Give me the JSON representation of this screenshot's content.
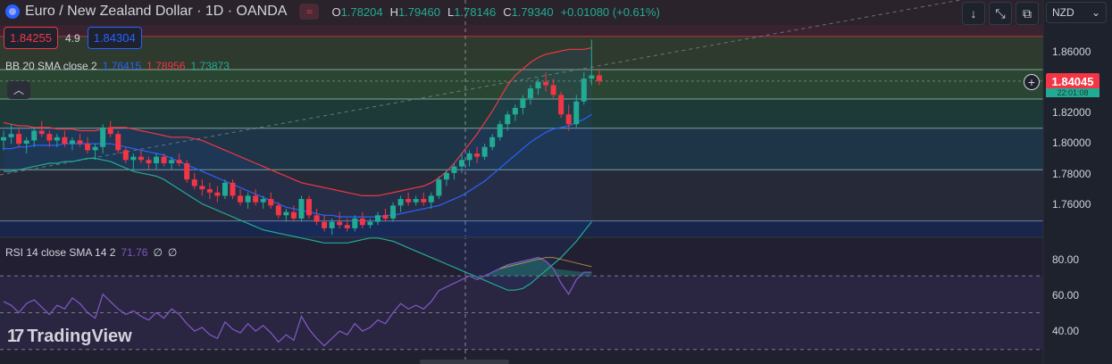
{
  "header": {
    "symbol_title": "Euro / New Zealand Dollar · 1D · OANDA",
    "ohlc": {
      "o_label": "O",
      "o": "1.78204",
      "h_label": "H",
      "h": "1.79460",
      "l_label": "L",
      "l": "1.78146",
      "c_label": "C",
      "c": "1.79340",
      "change": "+0.01080 (+0.61%)"
    }
  },
  "trade": {
    "bid": "1.84255",
    "spread": "4.9",
    "ask": "1.84304"
  },
  "indicators": {
    "bb": {
      "name": "BB 20 SMA close 2",
      "basis": "1.76415",
      "upper": "1.78956",
      "lower": "1.73873"
    },
    "rsi": {
      "name": "RSI 14 close SMA 14 2",
      "value": "71.76",
      "extra1": "∅",
      "extra2": "∅"
    }
  },
  "price_axis": {
    "ticks": [
      "1.86000",
      "1.84000",
      "1.82000",
      "1.80000",
      "1.78000",
      "1.76000"
    ],
    "current_price": "1.84045",
    "countdown": "22:01:08"
  },
  "rsi_axis": {
    "ticks": [
      "80.00",
      "60.00",
      "40.00"
    ]
  },
  "toolbar": {
    "currency": "NZD"
  },
  "branding": {
    "logo_text": "TradingView"
  },
  "colors": {
    "bull": "#22ab94",
    "bear": "#f23645",
    "bb_basis": "#2962ff",
    "bb_upper": "#f23645",
    "bb_lower": "#22ab94",
    "rsi": "#7e57c2"
  },
  "chart_data": {
    "type": "candlestick",
    "candles": [
      [
        1.804,
        1.81,
        1.798,
        1.806
      ],
      [
        1.806,
        1.814,
        1.802,
        1.808
      ],
      [
        1.808,
        1.812,
        1.8,
        1.802
      ],
      [
        1.802,
        1.806,
        1.796,
        1.804
      ],
      [
        1.804,
        1.812,
        1.8,
        1.81
      ],
      [
        1.81,
        1.816,
        1.806,
        1.808
      ],
      [
        1.808,
        1.81,
        1.8,
        1.804
      ],
      [
        1.804,
        1.808,
        1.8,
        1.806
      ],
      [
        1.806,
        1.81,
        1.8,
        1.802
      ],
      [
        1.802,
        1.806,
        1.798,
        1.804
      ],
      [
        1.804,
        1.808,
        1.8,
        1.802
      ],
      [
        1.802,
        1.806,
        1.796,
        1.798
      ],
      [
        1.798,
        1.802,
        1.792,
        1.8
      ],
      [
        1.8,
        1.814,
        1.796,
        1.812
      ],
      [
        1.812,
        1.816,
        1.806,
        1.808
      ],
      [
        1.808,
        1.81,
        1.796,
        1.798
      ],
      [
        1.798,
        1.8,
        1.79,
        1.792
      ],
      [
        1.792,
        1.796,
        1.786,
        1.794
      ],
      [
        1.794,
        1.798,
        1.79,
        1.792
      ],
      [
        1.792,
        1.794,
        1.786,
        1.79
      ],
      [
        1.79,
        1.796,
        1.786,
        1.794
      ],
      [
        1.794,
        1.796,
        1.788,
        1.79
      ],
      [
        1.79,
        1.794,
        1.786,
        1.792
      ],
      [
        1.792,
        1.796,
        1.788,
        1.79
      ],
      [
        1.79,
        1.792,
        1.778,
        1.78
      ],
      [
        1.78,
        1.784,
        1.774,
        1.776
      ],
      [
        1.776,
        1.78,
        1.77,
        1.774
      ],
      [
        1.774,
        1.778,
        1.768,
        1.772
      ],
      [
        1.772,
        1.776,
        1.766,
        1.77
      ],
      [
        1.77,
        1.78,
        1.768,
        1.778
      ],
      [
        1.778,
        1.78,
        1.768,
        1.77
      ],
      [
        1.77,
        1.774,
        1.764,
        1.766
      ],
      [
        1.766,
        1.772,
        1.762,
        1.77
      ],
      [
        1.77,
        1.774,
        1.764,
        1.766
      ],
      [
        1.766,
        1.77,
        1.762,
        1.768
      ],
      [
        1.768,
        1.772,
        1.762,
        1.764
      ],
      [
        1.764,
        1.766,
        1.756,
        1.758
      ],
      [
        1.758,
        1.762,
        1.754,
        1.76
      ],
      [
        1.76,
        1.764,
        1.754,
        1.756
      ],
      [
        1.756,
        1.77,
        1.754,
        1.768
      ],
      [
        1.768,
        1.77,
        1.756,
        1.758
      ],
      [
        1.758,
        1.762,
        1.752,
        1.754
      ],
      [
        1.754,
        1.758,
        1.748,
        1.75
      ],
      [
        1.75,
        1.756,
        1.746,
        1.754
      ],
      [
        1.754,
        1.76,
        1.75,
        1.752
      ],
      [
        1.752,
        1.756,
        1.748,
        1.75
      ],
      [
        1.75,
        1.758,
        1.748,
        1.756
      ],
      [
        1.756,
        1.76,
        1.75,
        1.752
      ],
      [
        1.752,
        1.756,
        1.75,
        1.754
      ],
      [
        1.754,
        1.76,
        1.752,
        1.758
      ],
      [
        1.758,
        1.762,
        1.754,
        1.756
      ],
      [
        1.756,
        1.766,
        1.754,
        1.764
      ],
      [
        1.764,
        1.77,
        1.76,
        1.768
      ],
      [
        1.768,
        1.772,
        1.764,
        1.766
      ],
      [
        1.766,
        1.77,
        1.764,
        1.768
      ],
      [
        1.768,
        1.772,
        1.764,
        1.766
      ],
      [
        1.766,
        1.772,
        1.762,
        1.77
      ],
      [
        1.77,
        1.782,
        1.768,
        1.78
      ],
      [
        1.78,
        1.786,
        1.776,
        1.784
      ],
      [
        1.784,
        1.79,
        1.78,
        1.788
      ],
      [
        1.788,
        1.796,
        1.784,
        1.792
      ],
      [
        1.792,
        1.798,
        1.788,
        1.796
      ],
      [
        1.796,
        1.8,
        1.79,
        1.794
      ],
      [
        1.794,
        1.802,
        1.792,
        1.8
      ],
      [
        1.8,
        1.808,
        1.798,
        1.806
      ],
      [
        1.806,
        1.816,
        1.804,
        1.814
      ],
      [
        1.814,
        1.822,
        1.81,
        1.82
      ],
      [
        1.82,
        1.826,
        1.816,
        1.824
      ],
      [
        1.824,
        1.832,
        1.82,
        1.83
      ],
      [
        1.83,
        1.838,
        1.826,
        1.836
      ],
      [
        1.836,
        1.842,
        1.832,
        1.84
      ],
      [
        1.84,
        1.846,
        1.834,
        1.838
      ],
      [
        1.838,
        1.842,
        1.83,
        1.832
      ],
      [
        1.832,
        1.834,
        1.818,
        1.82
      ],
      [
        1.82,
        1.826,
        1.81,
        1.814
      ],
      [
        1.814,
        1.832,
        1.812,
        1.828
      ],
      [
        1.828,
        1.846,
        1.826,
        1.842
      ],
      [
        1.842,
        1.866,
        1.838,
        1.844
      ],
      [
        1.844,
        1.848,
        1.838,
        1.8405
      ]
    ],
    "bb_upper": [
      1.815,
      1.814,
      1.813,
      1.813,
      1.812,
      1.812,
      1.812,
      1.811,
      1.811,
      1.811,
      1.81,
      1.81,
      1.81,
      1.811,
      1.812,
      1.812,
      1.812,
      1.811,
      1.81,
      1.809,
      1.808,
      1.807,
      1.806,
      1.806,
      1.806,
      1.805,
      1.804,
      1.802,
      1.8,
      1.798,
      1.796,
      1.794,
      1.792,
      1.79,
      1.788,
      1.786,
      1.784,
      1.782,
      1.78,
      1.778,
      1.777,
      1.776,
      1.775,
      1.774,
      1.773,
      1.772,
      1.771,
      1.77,
      1.77,
      1.77,
      1.771,
      1.772,
      1.773,
      1.774,
      1.775,
      1.776,
      1.778,
      1.781,
      1.785,
      1.79,
      1.796,
      1.802,
      1.808,
      1.815,
      1.822,
      1.83,
      1.838,
      1.844,
      1.848,
      1.852,
      1.855,
      1.857,
      1.858,
      1.859,
      1.86,
      1.86,
      1.86,
      1.861
    ],
    "bb_basis": [
      1.799,
      1.799,
      1.8,
      1.8,
      1.801,
      1.801,
      1.801,
      1.801,
      1.802,
      1.802,
      1.802,
      1.802,
      1.802,
      1.802,
      1.802,
      1.801,
      1.8,
      1.799,
      1.798,
      1.797,
      1.796,
      1.795,
      1.793,
      1.791,
      1.789,
      1.787,
      1.785,
      1.783,
      1.781,
      1.779,
      1.777,
      1.775,
      1.773,
      1.771,
      1.769,
      1.767,
      1.765,
      1.763,
      1.762,
      1.761,
      1.76,
      1.759,
      1.758,
      1.758,
      1.757,
      1.757,
      1.757,
      1.757,
      1.757,
      1.757,
      1.758,
      1.758,
      1.759,
      1.76,
      1.761,
      1.762,
      1.763,
      1.764,
      1.766,
      1.768,
      1.77,
      1.773,
      1.776,
      1.779,
      1.783,
      1.787,
      1.791,
      1.795,
      1.799,
      1.803,
      1.806,
      1.809,
      1.811,
      1.812,
      1.813,
      1.815,
      1.817,
      1.82
    ],
    "bb_lower": [
      1.785,
      1.785,
      1.786,
      1.787,
      1.788,
      1.789,
      1.79,
      1.79,
      1.791,
      1.791,
      1.792,
      1.793,
      1.793,
      1.792,
      1.791,
      1.789,
      1.787,
      1.785,
      1.784,
      1.783,
      1.782,
      1.78,
      1.777,
      1.774,
      1.771,
      1.768,
      1.765,
      1.763,
      1.761,
      1.759,
      1.757,
      1.755,
      1.753,
      1.751,
      1.749,
      1.748,
      1.747,
      1.746,
      1.745,
      1.744,
      1.743,
      1.742,
      1.741,
      1.741,
      1.741,
      1.741,
      1.742,
      1.743,
      1.744,
      1.744,
      1.743,
      1.742,
      1.74,
      1.738,
      1.736,
      1.734,
      1.732,
      1.73,
      1.728,
      1.726,
      1.724,
      1.722,
      1.72,
      1.718,
      1.716,
      1.714,
      1.712,
      1.712,
      1.713,
      1.716,
      1.72,
      1.724,
      1.728,
      1.732,
      1.737,
      1.742,
      1.748,
      1.754
    ],
    "rsi": [
      56,
      54,
      50,
      55,
      57,
      53,
      49,
      54,
      52,
      58,
      55,
      50,
      47,
      60,
      56,
      52,
      49,
      51,
      48,
      46,
      50,
      47,
      52,
      49,
      44,
      40,
      42,
      38,
      36,
      45,
      41,
      39,
      44,
      40,
      43,
      39,
      34,
      38,
      35,
      48,
      41,
      36,
      32,
      36,
      40,
      38,
      44,
      40,
      42,
      46,
      44,
      50,
      55,
      52,
      54,
      52,
      56,
      62,
      64,
      66,
      68,
      70,
      68,
      70,
      72,
      74,
      76,
      77,
      78,
      79,
      80,
      78,
      74,
      66,
      60,
      68,
      72,
      72
    ],
    "rsi_sma": [
      null,
      null,
      null,
      null,
      null,
      null,
      null,
      null,
      null,
      null,
      null,
      null,
      null,
      null,
      null,
      null,
      null,
      null,
      null,
      null,
      null,
      null,
      null,
      null,
      null,
      null,
      null,
      null,
      null,
      null,
      null,
      null,
      null,
      null,
      null,
      null,
      null,
      null,
      null,
      null,
      null,
      null,
      null,
      null,
      null,
      null,
      null,
      null,
      null,
      null,
      null,
      null,
      null,
      null,
      null,
      null,
      null,
      null,
      null,
      null,
      null,
      null,
      null,
      null,
      null,
      74,
      75,
      76,
      77,
      78,
      79,
      80,
      80,
      79,
      78,
      77,
      76,
      75
    ],
    "horizontal_levels": [
      1.868,
      1.8476,
      1.8295,
      1.8115,
      1.786,
      1.7545
    ],
    "rsi_levels": [
      70,
      50,
      30
    ],
    "y_range": [
      1.745,
      1.875
    ],
    "rsi_range": [
      25,
      90
    ]
  }
}
